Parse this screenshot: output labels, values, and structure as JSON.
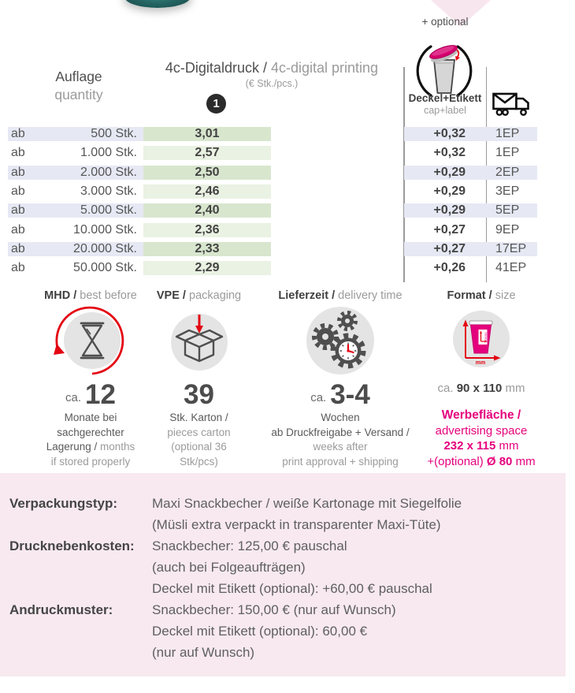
{
  "header": {
    "optional": "+ optional",
    "quantity_de": "Auflage",
    "quantity_en": "quantity",
    "print_de": "4c-Digitaldruck /",
    "print_en": "4c-digital printing",
    "print_unit": "(€ Stk./pcs.)",
    "badge": "1",
    "cap_de": "Deckel+Etikett",
    "cap_en": "cap+label"
  },
  "price_table": {
    "rows": [
      {
        "prefix": "ab",
        "qty": "500 Stk.",
        "price": "3,01",
        "cap": "+0,32",
        "ship": "1EP"
      },
      {
        "prefix": "ab",
        "qty": "1.000 Stk.",
        "price": "2,57",
        "cap": "+0,32",
        "ship": "1EP"
      },
      {
        "prefix": "ab",
        "qty": "2.000 Stk.",
        "price": "2,50",
        "cap": "+0,29",
        "ship": "2EP"
      },
      {
        "prefix": "ab",
        "qty": "3.000 Stk.",
        "price": "2,46",
        "cap": "+0,29",
        "ship": "3EP"
      },
      {
        "prefix": "ab",
        "qty": "5.000 Stk.",
        "price": "2,40",
        "cap": "+0,29",
        "ship": "5EP"
      },
      {
        "prefix": "ab",
        "qty": "10.000 Stk.",
        "price": "2,36",
        "cap": "+0,27",
        "ship": "9EP"
      },
      {
        "prefix": "ab",
        "qty": "20.000 Stk.",
        "price": "2,33",
        "cap": "+0,27",
        "ship": "17EP"
      },
      {
        "prefix": "ab",
        "qty": "50.000 Stk.",
        "price": "2,29",
        "cap": "+0,26",
        "ship": "41EP"
      }
    ]
  },
  "mhd": {
    "title_de": "MHD /",
    "title_en": "best before",
    "num_prefix": "ca.",
    "num": "12",
    "l1": "Monate bei",
    "l2": "sachgerechter",
    "l3a": "Lagerung / ",
    "l3b": "months",
    "l4": "if stored properly"
  },
  "vpe": {
    "title_de": "VPE /",
    "title_en": "packaging",
    "num": "39",
    "l1": "Stk. Karton /",
    "l2": "pieces carton",
    "l3": "(optional 36",
    "l4": "Stk/pcs)"
  },
  "lieferzeit": {
    "title_de": "Lieferzeit /",
    "title_en": "delivery time",
    "num_prefix": "ca.",
    "num": "3-4",
    "l1": "Wochen",
    "l2": "ab Druckfreigabe + Versand /",
    "l3": "weeks after",
    "l4": "print approval + shipping"
  },
  "format": {
    "title_de": "Format /",
    "title_en": "size",
    "size_prefix": "ca. ",
    "size_num": "90 x 110",
    "size_unit": " mm",
    "ad_title_de": "Werbefläche /",
    "ad_title_en": "advertising space",
    "ad_num": "232 x 115",
    "ad_unit": " mm",
    "opt_prefix": "+(optional) ",
    "opt_num": "Ø 80",
    "opt_unit": " mm",
    "icon_mm": "mm",
    "icon_design": "DESIGN"
  },
  "details": {
    "rows": [
      {
        "label": "Verpackungstyp:",
        "lines": [
          "Maxi Snackbecher / weiße Kartonage mit Siegelfolie",
          "(Müsli extra verpackt in transparenter Maxi-Tüte)"
        ]
      },
      {
        "label": "Drucknebenkosten:",
        "lines": [
          "Snackbecher: 125,00 € pauschal",
          "(auch bei Folgeaufträgen)",
          "Deckel mit Etikett (optional): +60,00 € pauschal"
        ]
      },
      {
        "label": "Andruckmuster:",
        "lines": [
          "Snackbecher: 150,00 € (nur auf Wunsch)",
          "Deckel mit Etikett (optional): 60,00 €",
          "(nur auf Wunsch)"
        ]
      }
    ]
  }
}
